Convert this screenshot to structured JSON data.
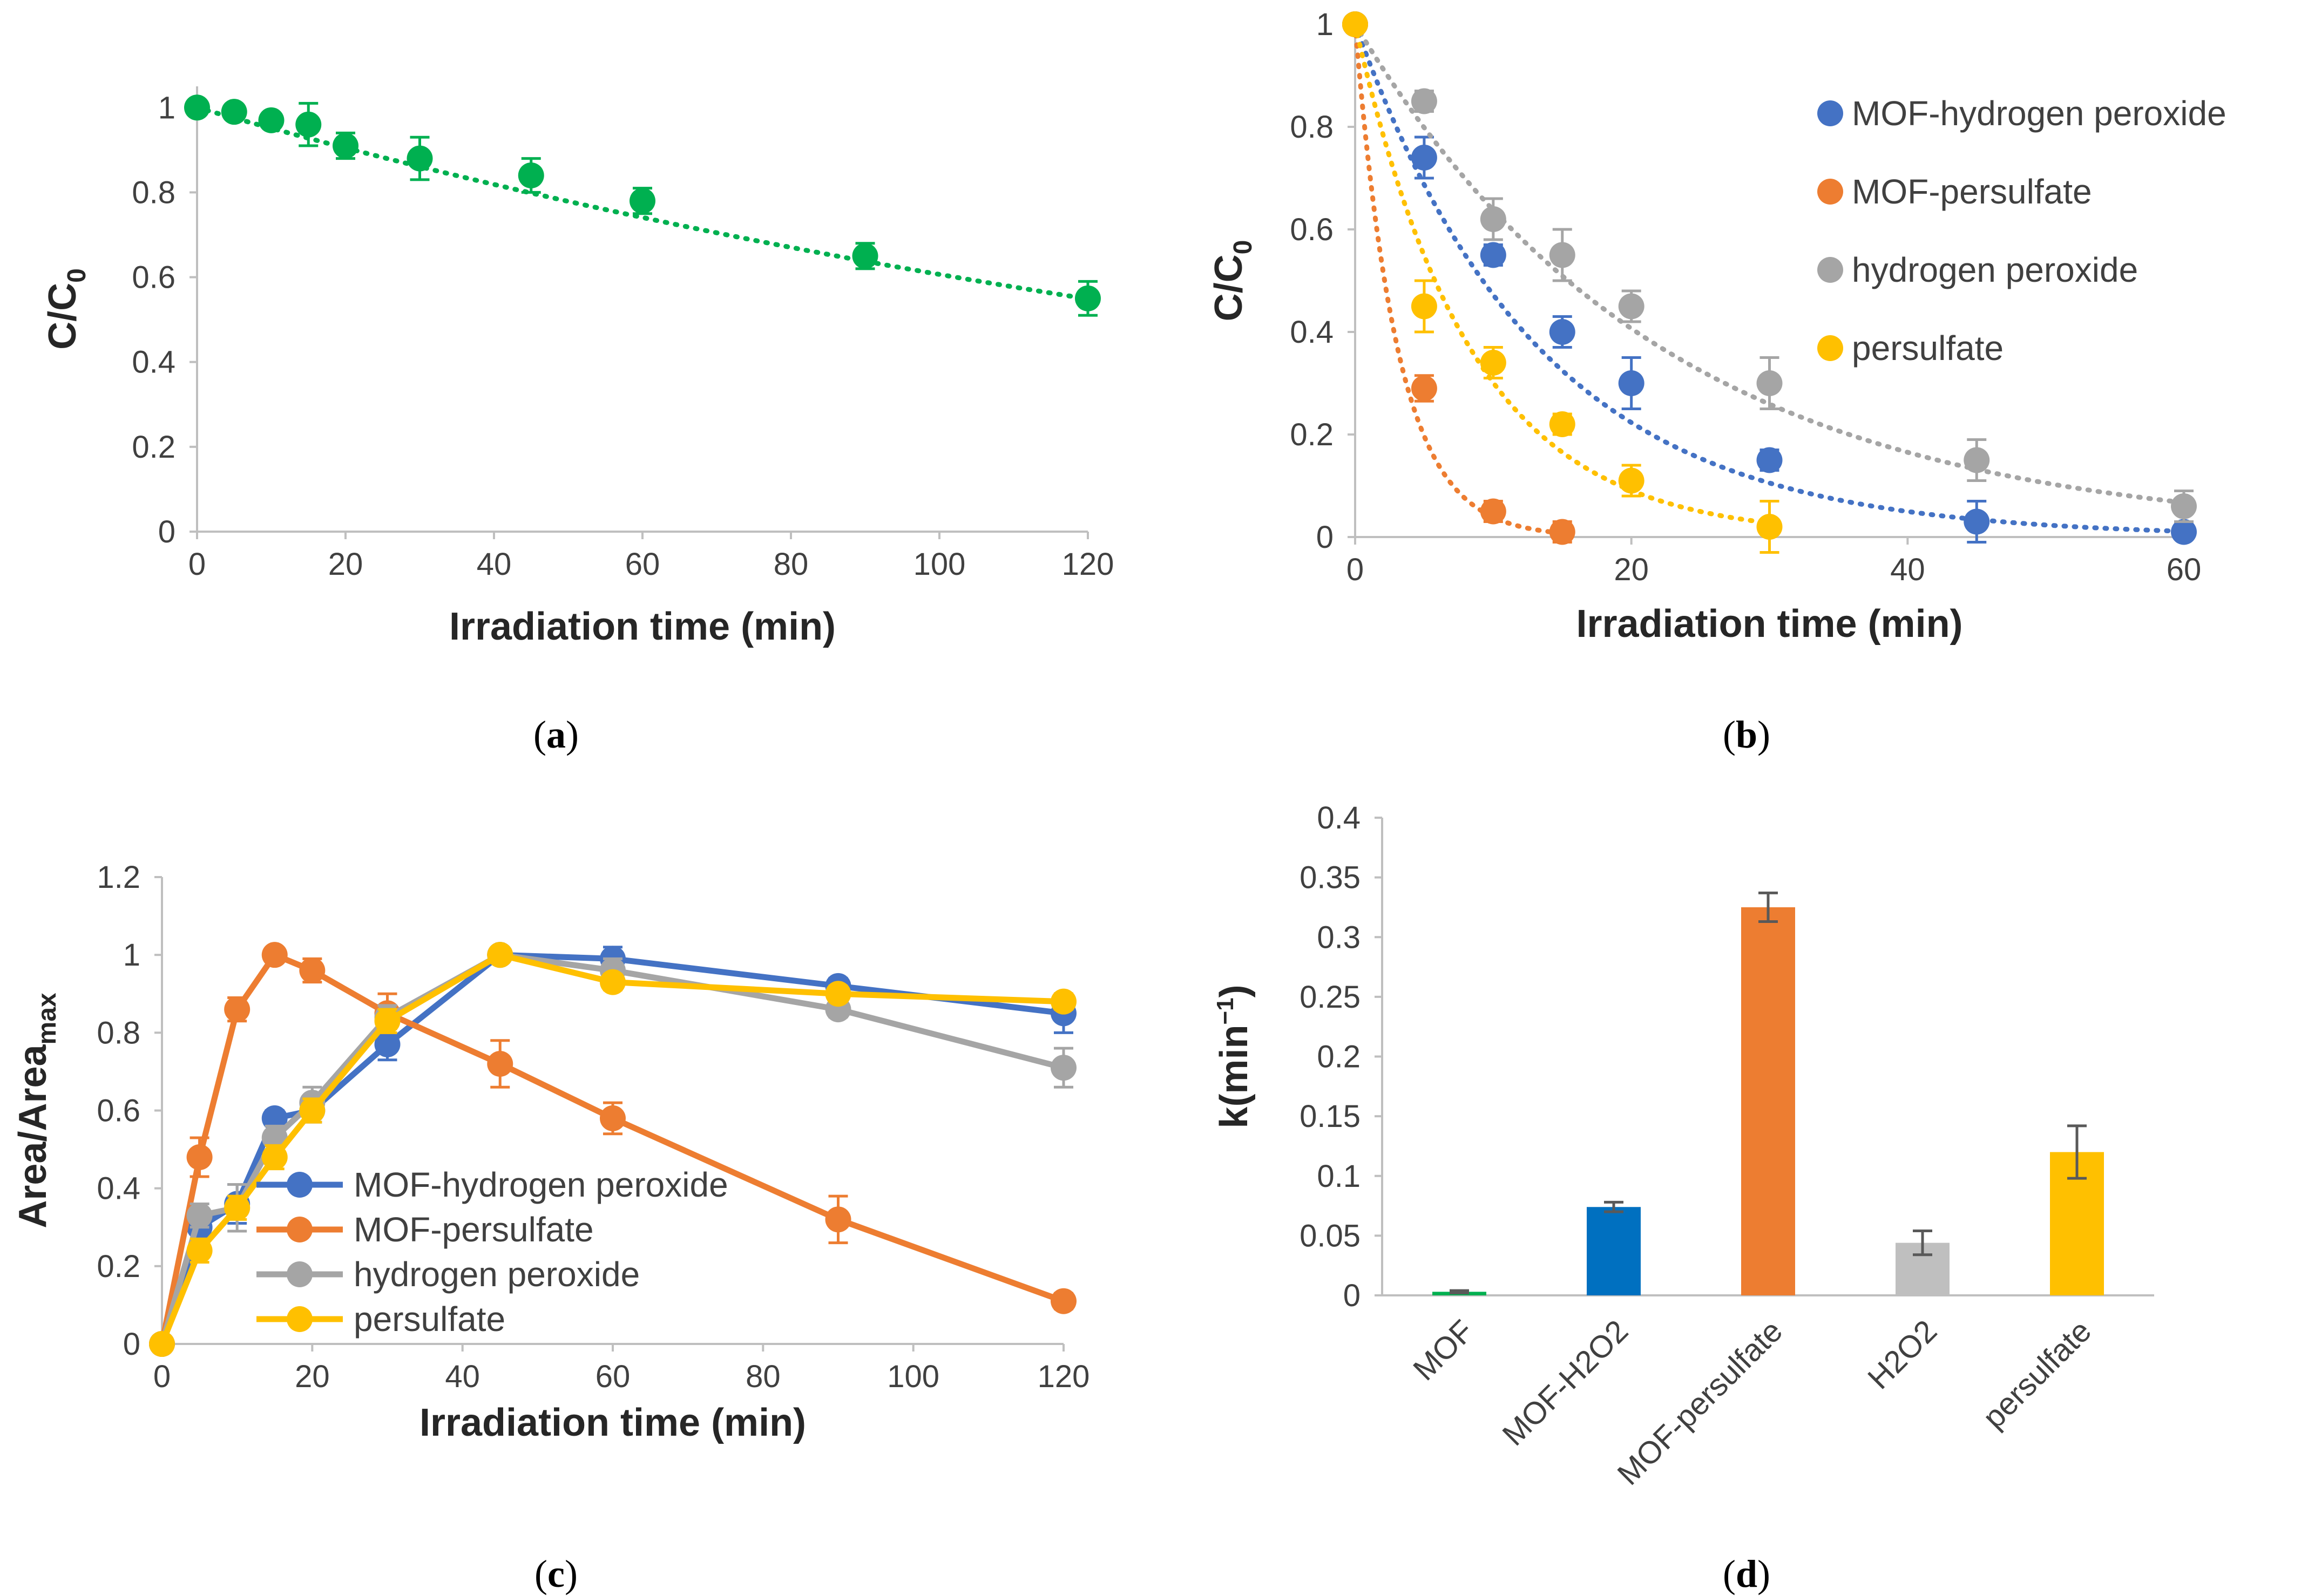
{
  "chart_data": [
    {
      "id": "a",
      "type": "scatter",
      "caption": {
        "open": "(",
        "letter": "a",
        "close": ")"
      },
      "xlabel": "Irradiation time (min)",
      "ylabel": "C/C",
      "ylabel_sub": "0",
      "xlim": [
        0,
        120
      ],
      "ylim": [
        0,
        1.05
      ],
      "xticks": [
        0,
        20,
        40,
        60,
        80,
        100,
        120
      ],
      "yticks": [
        0,
        0.2,
        0.4,
        0.6,
        0.8,
        1
      ],
      "ytick_labels": [
        "0",
        "0.2",
        "0.4",
        "0.6",
        "0.8",
        "1"
      ],
      "series": [
        {
          "name": "MOF",
          "color": "#00b050",
          "x": [
            0,
            5,
            10,
            15,
            20,
            30,
            45,
            60,
            90,
            120
          ],
          "y": [
            1.0,
            0.99,
            0.97,
            0.96,
            0.91,
            0.88,
            0.84,
            0.78,
            0.65,
            0.55
          ],
          "err": [
            0.01,
            0.015,
            0.015,
            0.05,
            0.03,
            0.05,
            0.04,
            0.03,
            0.03,
            0.04
          ],
          "trend": {
            "kind": "exp",
            "k": 0.005
          }
        }
      ]
    },
    {
      "id": "b",
      "type": "scatter",
      "caption": {
        "open": "(",
        "letter": "b",
        "close": ")"
      },
      "xlabel": "Irradiation time (min)",
      "ylabel": "C/C",
      "ylabel_sub": "0",
      "xlim": [
        0,
        60
      ],
      "ylim": [
        0,
        1
      ],
      "xticks": [
        0,
        20,
        40,
        60
      ],
      "yticks": [
        0,
        0.2,
        0.4,
        0.6,
        0.8,
        1
      ],
      "ytick_labels": [
        "0",
        "0.2",
        "0.4",
        "0.6",
        "0.8",
        "1"
      ],
      "legend_position": "top-right",
      "series": [
        {
          "name": "MOF-hydrogen peroxide",
          "color": "#4472c4",
          "x": [
            0,
            5,
            10,
            15,
            20,
            30,
            45,
            60
          ],
          "y": [
            1.0,
            0.74,
            0.55,
            0.4,
            0.3,
            0.15,
            0.03,
            0.01
          ],
          "err": [
            0.0,
            0.04,
            0.02,
            0.03,
            0.05,
            0.02,
            0.04,
            0.01
          ],
          "trend": {
            "kind": "exp",
            "k": 0.075
          }
        },
        {
          "name": "MOF-persulfate",
          "color": "#ed7d31",
          "x": [
            0,
            5,
            10,
            15
          ],
          "y": [
            1.0,
            0.29,
            0.05,
            0.01
          ],
          "err": [
            0.0,
            0.025,
            0.02,
            0.02
          ],
          "trend": {
            "kind": "exp",
            "k": 0.325
          }
        },
        {
          "name": "hydrogen peroxide",
          "color": "#a5a5a5",
          "x": [
            0,
            5,
            10,
            20,
            15,
            30,
            45,
            60
          ],
          "y": [
            1.0,
            0.85,
            0.62,
            0.45,
            0.55,
            0.3,
            0.15,
            0.06
          ],
          "err": [
            0.0,
            0.02,
            0.04,
            0.03,
            0.05,
            0.05,
            0.04,
            0.03
          ],
          "trend": {
            "kind": "exp",
            "k": 0.045
          }
        },
        {
          "name": "persulfate",
          "color": "#ffc000",
          "x": [
            0,
            5,
            10,
            15,
            20,
            30
          ],
          "y": [
            1.0,
            0.45,
            0.34,
            0.22,
            0.11,
            0.02
          ],
          "err": [
            0.0,
            0.05,
            0.03,
            0.02,
            0.03,
            0.05
          ],
          "trend": {
            "kind": "exp",
            "k": 0.12
          }
        }
      ]
    },
    {
      "id": "c",
      "type": "line",
      "caption": {
        "open": "(",
        "letter": "c",
        "close": ")"
      },
      "xlabel": "Irradiation time (min)",
      "ylabel": "Area/Area",
      "ylabel_sub": "max",
      "xlim": [
        0,
        120
      ],
      "ylim": [
        0,
        1.2
      ],
      "xticks": [
        0,
        20,
        40,
        60,
        80,
        100,
        120
      ],
      "yticks": [
        0,
        0.2,
        0.4,
        0.6,
        0.8,
        1,
        1.2
      ],
      "ytick_labels": [
        "0",
        "0.2",
        "0.4",
        "0.6",
        "0.8",
        "1",
        "1.2"
      ],
      "legend_position": "bottom-left",
      "series": [
        {
          "name": "MOF-hydrogen peroxide",
          "color": "#4472c4",
          "x": [
            0,
            5,
            10,
            15,
            20,
            30,
            45,
            60,
            90,
            120
          ],
          "y": [
            0,
            0.3,
            0.36,
            0.58,
            0.6,
            0.77,
            1.0,
            0.99,
            0.92,
            0.85
          ],
          "err": [
            0,
            0.06,
            0.05,
            0.02,
            0.03,
            0.04,
            0.01,
            0.03,
            0.02,
            0.05
          ]
        },
        {
          "name": "MOF-persulfate",
          "color": "#ed7d31",
          "x": [
            0,
            5,
            10,
            15,
            20,
            30,
            45,
            60,
            90,
            120
          ],
          "y": [
            0,
            0.48,
            0.86,
            1.0,
            0.96,
            0.85,
            0.72,
            0.58,
            0.32,
            0.11
          ],
          "err": [
            0,
            0.05,
            0.03,
            0.01,
            0.03,
            0.05,
            0.06,
            0.04,
            0.06,
            0.02
          ]
        },
        {
          "name": "hydrogen peroxide",
          "color": "#a5a5a5",
          "x": [
            0,
            5,
            10,
            15,
            20,
            30,
            45,
            60,
            90,
            120
          ],
          "y": [
            0,
            0.33,
            0.35,
            0.53,
            0.62,
            0.84,
            1.0,
            0.96,
            0.86,
            0.71
          ],
          "err": [
            0,
            0.03,
            0.06,
            0.03,
            0.04,
            0.03,
            0.01,
            0.03,
            0.02,
            0.05
          ]
        },
        {
          "name": "persulfate",
          "color": "#ffc000",
          "x": [
            0,
            5,
            10,
            15,
            20,
            30,
            45,
            60,
            90,
            120
          ],
          "y": [
            0,
            0.24,
            0.35,
            0.48,
            0.6,
            0.83,
            1.0,
            0.93,
            0.9,
            0.88
          ],
          "err": [
            0,
            0.03,
            0.03,
            0.03,
            0.03,
            0.03,
            0.01,
            0.02,
            0.02,
            0.02
          ]
        }
      ]
    },
    {
      "id": "d",
      "type": "bar",
      "caption": {
        "open": "(",
        "letter": "d",
        "close": ")"
      },
      "xlabel": "",
      "ylabel": "k(min",
      "ylabel_sup": "−1",
      "ylabel_close": ")",
      "ylim": [
        0,
        0.4
      ],
      "yticks": [
        0,
        0.05,
        0.1,
        0.15,
        0.2,
        0.25,
        0.3,
        0.35,
        0.4
      ],
      "ytick_labels": [
        "0",
        "0.05",
        "0.1",
        "0.15",
        "0.2",
        "0.25",
        "0.3",
        "0.35",
        "0.4"
      ],
      "categories": [
        "MOF",
        "MOF-H2O2",
        "MOF-persulfate",
        "H2O2",
        "persulfate"
      ],
      "values": [
        0.003,
        0.074,
        0.325,
        0.044,
        0.12
      ],
      "err": [
        0.001,
        0.004,
        0.012,
        0.01,
        0.022
      ],
      "colors": [
        "#00b050",
        "#0070c0",
        "#ed7d31",
        "#bfbfbf",
        "#ffc000"
      ]
    }
  ]
}
